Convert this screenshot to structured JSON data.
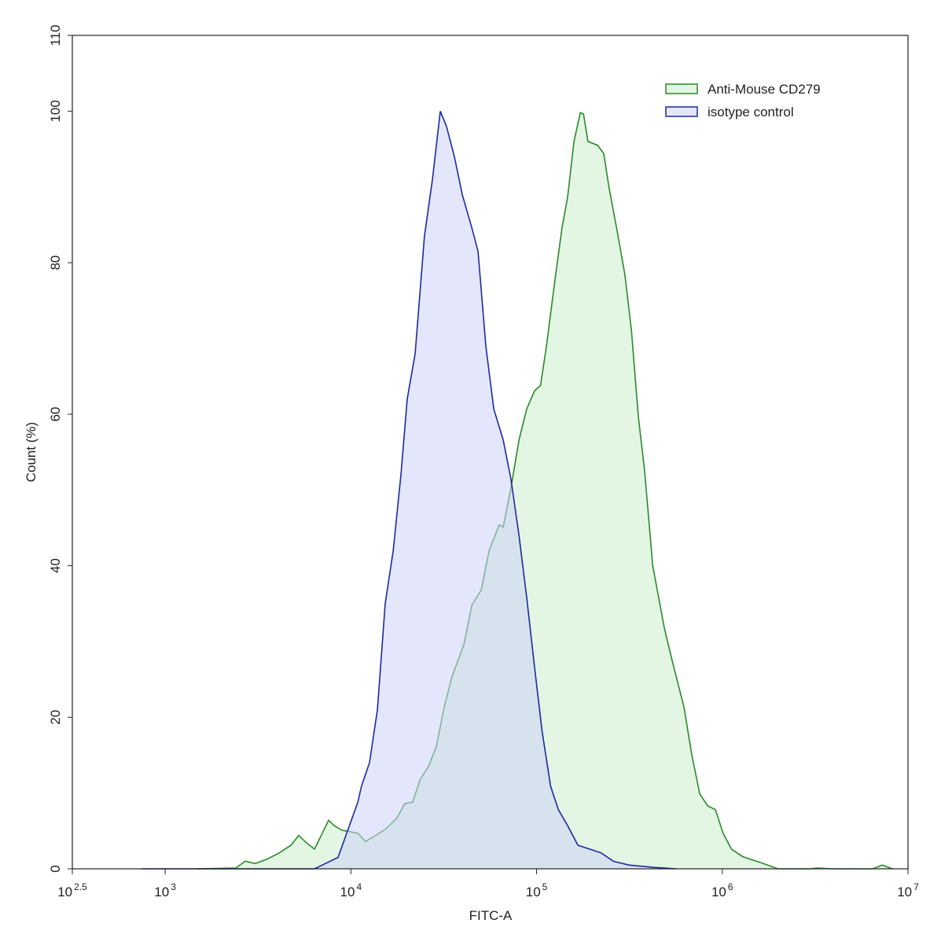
{
  "chart_data": {
    "type": "histogram-overlay",
    "xscale": "log",
    "x_label": "FITC-A",
    "y_label": "Count  (%)",
    "xlim": [
      316.228,
      10000000
    ],
    "ylim": [
      0,
      110
    ],
    "xticks": [
      {
        "value": 316.228,
        "label": "10",
        "sup": "2.5"
      },
      {
        "value": 1000,
        "label": "10",
        "sup": "3"
      },
      {
        "value": 10000,
        "label": "10",
        "sup": "4"
      },
      {
        "value": 100000,
        "label": "10",
        "sup": "5"
      },
      {
        "value": 1000000,
        "label": "10",
        "sup": "6"
      },
      {
        "value": 10000000,
        "label": "10",
        "sup": "7"
      }
    ],
    "yticks": [
      0,
      20,
      40,
      60,
      80,
      100,
      110
    ],
    "legend": "top-right",
    "series": [
      {
        "name": "Anti-Mouse CD279",
        "color": "#2a8a2a",
        "fill": "rgba(200,235,200,0.5)",
        "x": [
          1480,
          2400,
          2700,
          3060,
          3550,
          4110,
          4750,
          5240,
          5780,
          6370,
          7020,
          7590,
          8130,
          8960,
          9880,
          10900,
          12000,
          13200,
          15300,
          17700,
          19500,
          21500,
          23700,
          26200,
          28800,
          31800,
          35100,
          40600,
          44800,
          50300,
          55500,
          62900,
          66100,
          72800,
          80400,
          88500,
          97600,
          105000,
          113000,
          125000,
          137000,
          147000,
          159000,
          172000,
          179000,
          189000,
          213000,
          230000,
          246000,
          272000,
          299000,
          324000,
          353000,
          382000,
          422000,
          488000,
          537000,
          622000,
          686000,
          756000,
          834000,
          919000,
          1010000,
          1120000,
          1290000,
          1570000,
          2000000,
          2960000,
          3260000,
          3960000,
          6460000,
          7260000,
          8240000
        ],
        "values": [
          0,
          0.1,
          1,
          0.7,
          1.3,
          2.1,
          3.1,
          4.4,
          3.4,
          2.6,
          4.7,
          6.4,
          5.7,
          5.1,
          4.9,
          4.7,
          3.6,
          4.2,
          5.2,
          6.7,
          8.6,
          8.8,
          11.9,
          13.5,
          16.1,
          21.3,
          25.4,
          29.6,
          34.8,
          36.8,
          42,
          45.4,
          45.1,
          50.3,
          56.6,
          60.7,
          63.1,
          63.8,
          69,
          77.3,
          84.6,
          88.7,
          96,
          99.8,
          99.6,
          96,
          95.5,
          94.4,
          89.8,
          84.1,
          78.4,
          71.1,
          59.7,
          52.4,
          40,
          31.7,
          27.5,
          21.3,
          15,
          9.9,
          8.3,
          7.8,
          4.7,
          2.6,
          1.6,
          0.9,
          0,
          0,
          0.1,
          0,
          0,
          0.5,
          0
        ]
      },
      {
        "name": "isotype control",
        "color": "#1c2a9e",
        "fill": "rgba(205,210,250,0.55)",
        "x": [
          746,
          6370,
          7020,
          8530,
          10900,
          11400,
          12600,
          13900,
          15300,
          16900,
          18600,
          20100,
          22200,
          24900,
          27500,
          30300,
          32700,
          36100,
          39800,
          44800,
          48400,
          53300,
          58800,
          66100,
          72800,
          80400,
          88500,
          97600,
          107000,
          119000,
          131000,
          147000,
          167000,
          193000,
          223000,
          259000,
          314000,
          422000,
          565000
        ],
        "values": [
          0,
          0,
          0.5,
          1.5,
          8.8,
          10.9,
          14,
          21,
          35,
          42,
          52,
          62,
          68,
          83.5,
          91,
          100,
          98,
          94,
          89,
          84.6,
          81.5,
          69,
          60.7,
          56.6,
          51.4,
          44,
          35.8,
          26.5,
          18.2,
          10.9,
          7.8,
          5.7,
          3.1,
          2.6,
          2.1,
          1,
          0.5,
          0.2,
          0
        ]
      }
    ]
  }
}
